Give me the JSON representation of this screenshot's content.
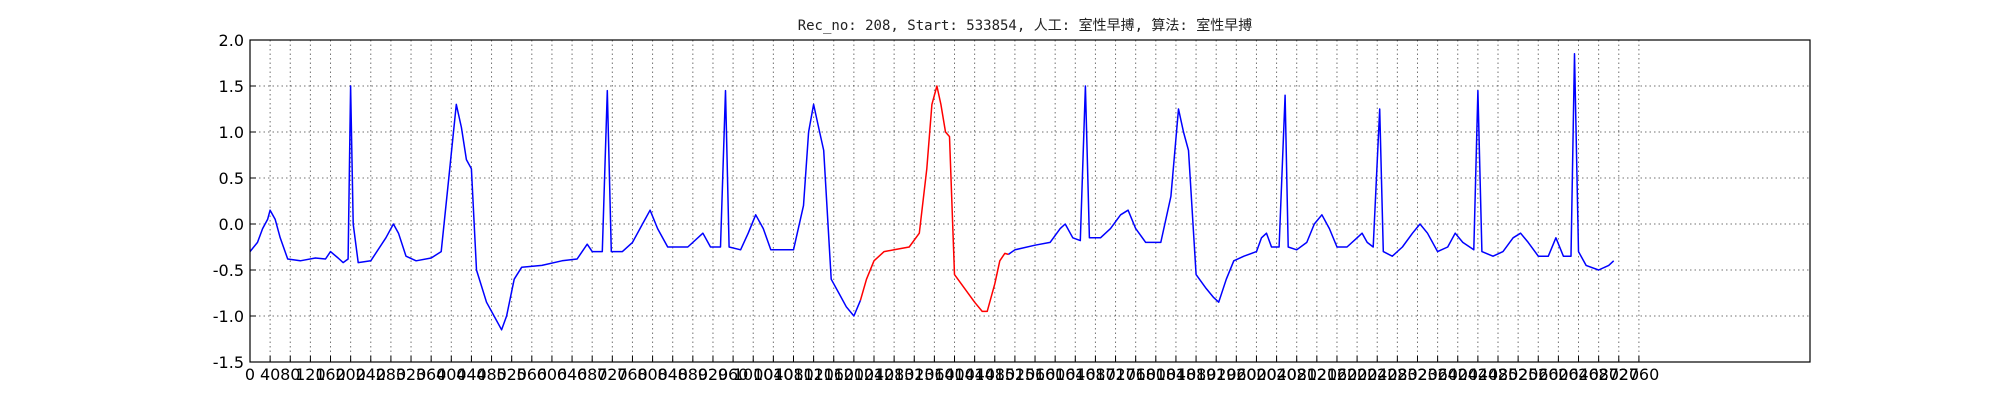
{
  "chart_data": {
    "type": "line",
    "title": "Rec_no: 208, Start: 533854, 人工: 室性早搏, 算法: 室性早搏",
    "xlabel": "",
    "ylabel": "",
    "xlim": [
      0,
      3100
    ],
    "ylim": [
      -1.5,
      2.0
    ],
    "grid": true,
    "x_ticks": [
      0,
      40,
      80,
      120,
      160,
      200,
      240,
      280,
      320,
      360,
      400,
      440,
      480,
      520,
      560,
      600,
      640,
      680,
      720,
      760,
      800,
      840,
      880,
      920,
      960,
      1000,
      1040,
      1080,
      1120,
      1160,
      1200,
      1240,
      1280,
      1320,
      1360,
      1400,
      1440,
      1480,
      1520,
      1560,
      1600,
      1640,
      1680,
      1720,
      1760,
      1800,
      1840,
      1880,
      1920,
      1960,
      2000,
      2040,
      2080,
      2120,
      2160,
      2200,
      2240,
      2280,
      2320,
      2360,
      2400,
      2440,
      2480,
      2520,
      2560,
      2600,
      2640,
      2680,
      2720,
      2760
    ],
    "y_ticks": [
      "-1.5",
      "-1.0",
      "-0.5",
      "0.0",
      "0.5",
      "1.0",
      "1.5",
      "2.0"
    ],
    "series": [
      {
        "color": "#0000ff",
        "points": [
          [
            0,
            -0.3
          ],
          [
            15,
            -0.2
          ],
          [
            25,
            -0.05
          ],
          [
            35,
            0.05
          ],
          [
            40,
            0.15
          ],
          [
            50,
            0.05
          ],
          [
            60,
            -0.15
          ],
          [
            75,
            -0.38
          ],
          [
            100,
            -0.4
          ],
          [
            130,
            -0.37
          ],
          [
            150,
            -0.38
          ],
          [
            160,
            -0.3
          ],
          [
            175,
            -0.37
          ],
          [
            185,
            -0.42
          ],
          [
            195,
            -0.38
          ],
          [
            200,
            1.5
          ],
          [
            205,
            0.0
          ],
          [
            215,
            -0.42
          ],
          [
            240,
            -0.4
          ],
          [
            270,
            -0.15
          ],
          [
            285,
            0.0
          ],
          [
            295,
            -0.1
          ],
          [
            310,
            -0.35
          ],
          [
            330,
            -0.4
          ],
          [
            360,
            -0.37
          ],
          [
            380,
            -0.3
          ],
          [
            395,
            0.5
          ],
          [
            410,
            1.3
          ],
          [
            420,
            1.05
          ],
          [
            430,
            0.7
          ],
          [
            440,
            0.6
          ],
          [
            450,
            -0.5
          ],
          [
            470,
            -0.85
          ],
          [
            490,
            -1.05
          ],
          [
            500,
            -1.15
          ],
          [
            510,
            -1.0
          ],
          [
            525,
            -0.6
          ],
          [
            540,
            -0.47
          ],
          [
            580,
            -0.45
          ],
          [
            620,
            -0.4
          ],
          [
            650,
            -0.38
          ],
          [
            670,
            -0.22
          ],
          [
            680,
            -0.3
          ],
          [
            690,
            -0.3
          ],
          [
            700,
            -0.3
          ],
          [
            710,
            1.45
          ],
          [
            718,
            -0.3
          ],
          [
            740,
            -0.3
          ],
          [
            760,
            -0.2
          ],
          [
            780,
            0.0
          ],
          [
            795,
            0.15
          ],
          [
            810,
            -0.05
          ],
          [
            830,
            -0.25
          ],
          [
            870,
            -0.25
          ],
          [
            900,
            -0.1
          ],
          [
            915,
            -0.25
          ],
          [
            935,
            -0.25
          ],
          [
            945,
            1.45
          ],
          [
            952,
            -0.25
          ],
          [
            975,
            -0.28
          ],
          [
            990,
            -0.1
          ],
          [
            1005,
            0.1
          ],
          [
            1020,
            -0.05
          ],
          [
            1035,
            -0.28
          ],
          [
            1080,
            -0.28
          ],
          [
            1100,
            0.2
          ],
          [
            1110,
            1.0
          ],
          [
            1120,
            1.3
          ],
          [
            1130,
            1.05
          ],
          [
            1140,
            0.8
          ],
          [
            1155,
            -0.6
          ],
          [
            1170,
            -0.75
          ],
          [
            1185,
            -0.9
          ],
          [
            1200,
            -1.0
          ],
          [
            1213,
            -0.83
          ]
        ]
      },
      {
        "color": "#ff0000",
        "points": [
          [
            1213,
            -0.83
          ],
          [
            1225,
            -0.6
          ],
          [
            1240,
            -0.4
          ],
          [
            1260,
            -0.3
          ],
          [
            1280,
            -0.28
          ],
          [
            1310,
            -0.25
          ],
          [
            1330,
            -0.1
          ],
          [
            1345,
            0.6
          ],
          [
            1355,
            1.3
          ],
          [
            1365,
            1.5
          ],
          [
            1373,
            1.3
          ],
          [
            1382,
            1.0
          ],
          [
            1390,
            0.95
          ],
          [
            1400,
            -0.55
          ],
          [
            1420,
            -0.7
          ],
          [
            1440,
            -0.85
          ],
          [
            1455,
            -0.95
          ],
          [
            1465,
            -0.95
          ],
          [
            1480,
            -0.65
          ],
          [
            1490,
            -0.4
          ],
          [
            1500,
            -0.32
          ],
          [
            1507,
            -0.33
          ]
        ]
      },
      {
        "color": "#0000ff",
        "points": [
          [
            1507,
            -0.33
          ],
          [
            1520,
            -0.28
          ],
          [
            1560,
            -0.23
          ],
          [
            1590,
            -0.2
          ],
          [
            1610,
            -0.05
          ],
          [
            1620,
            0.0
          ],
          [
            1635,
            -0.15
          ],
          [
            1650,
            -0.18
          ],
          [
            1660,
            1.5
          ],
          [
            1668,
            -0.15
          ],
          [
            1690,
            -0.15
          ],
          [
            1710,
            -0.05
          ],
          [
            1730,
            0.1
          ],
          [
            1745,
            0.15
          ],
          [
            1760,
            -0.05
          ],
          [
            1780,
            -0.2
          ],
          [
            1810,
            -0.2
          ],
          [
            1830,
            0.3
          ],
          [
            1845,
            1.25
          ],
          [
            1855,
            1.0
          ],
          [
            1865,
            0.8
          ],
          [
            1880,
            -0.55
          ],
          [
            1900,
            -0.7
          ],
          [
            1915,
            -0.8
          ],
          [
            1925,
            -0.85
          ],
          [
            1940,
            -0.6
          ],
          [
            1955,
            -0.4
          ],
          [
            1975,
            -0.35
          ],
          [
            2000,
            -0.3
          ],
          [
            2010,
            -0.15
          ],
          [
            2020,
            -0.1
          ],
          [
            2030,
            -0.25
          ],
          [
            2045,
            -0.25
          ],
          [
            2057,
            1.4
          ],
          [
            2063,
            -0.25
          ],
          [
            2080,
            -0.28
          ],
          [
            2100,
            -0.2
          ],
          [
            2115,
            0.0
          ],
          [
            2130,
            0.1
          ],
          [
            2145,
            -0.05
          ],
          [
            2160,
            -0.25
          ],
          [
            2180,
            -0.25
          ],
          [
            2200,
            -0.15
          ],
          [
            2210,
            -0.1
          ],
          [
            2220,
            -0.2
          ],
          [
            2232,
            -0.25
          ],
          [
            2245,
            1.25
          ],
          [
            2252,
            -0.3
          ],
          [
            2270,
            -0.35
          ],
          [
            2290,
            -0.25
          ],
          [
            2310,
            -0.1
          ],
          [
            2325,
            0.0
          ],
          [
            2340,
            -0.1
          ],
          [
            2360,
            -0.3
          ],
          [
            2380,
            -0.25
          ],
          [
            2395,
            -0.1
          ],
          [
            2410,
            -0.2
          ],
          [
            2432,
            -0.28
          ],
          [
            2440,
            1.45
          ],
          [
            2448,
            -0.3
          ],
          [
            2470,
            -0.35
          ],
          [
            2490,
            -0.3
          ],
          [
            2510,
            -0.15
          ],
          [
            2525,
            -0.1
          ],
          [
            2540,
            -0.2
          ],
          [
            2560,
            -0.35
          ],
          [
            2580,
            -0.35
          ],
          [
            2595,
            -0.15
          ],
          [
            2610,
            -0.35
          ],
          [
            2625,
            -0.35
          ],
          [
            2632,
            1.85
          ],
          [
            2640,
            -0.3
          ],
          [
            2655,
            -0.45
          ],
          [
            2680,
            -0.5
          ],
          [
            2700,
            -0.45
          ],
          [
            2710,
            -0.4
          ]
        ]
      }
    ]
  }
}
